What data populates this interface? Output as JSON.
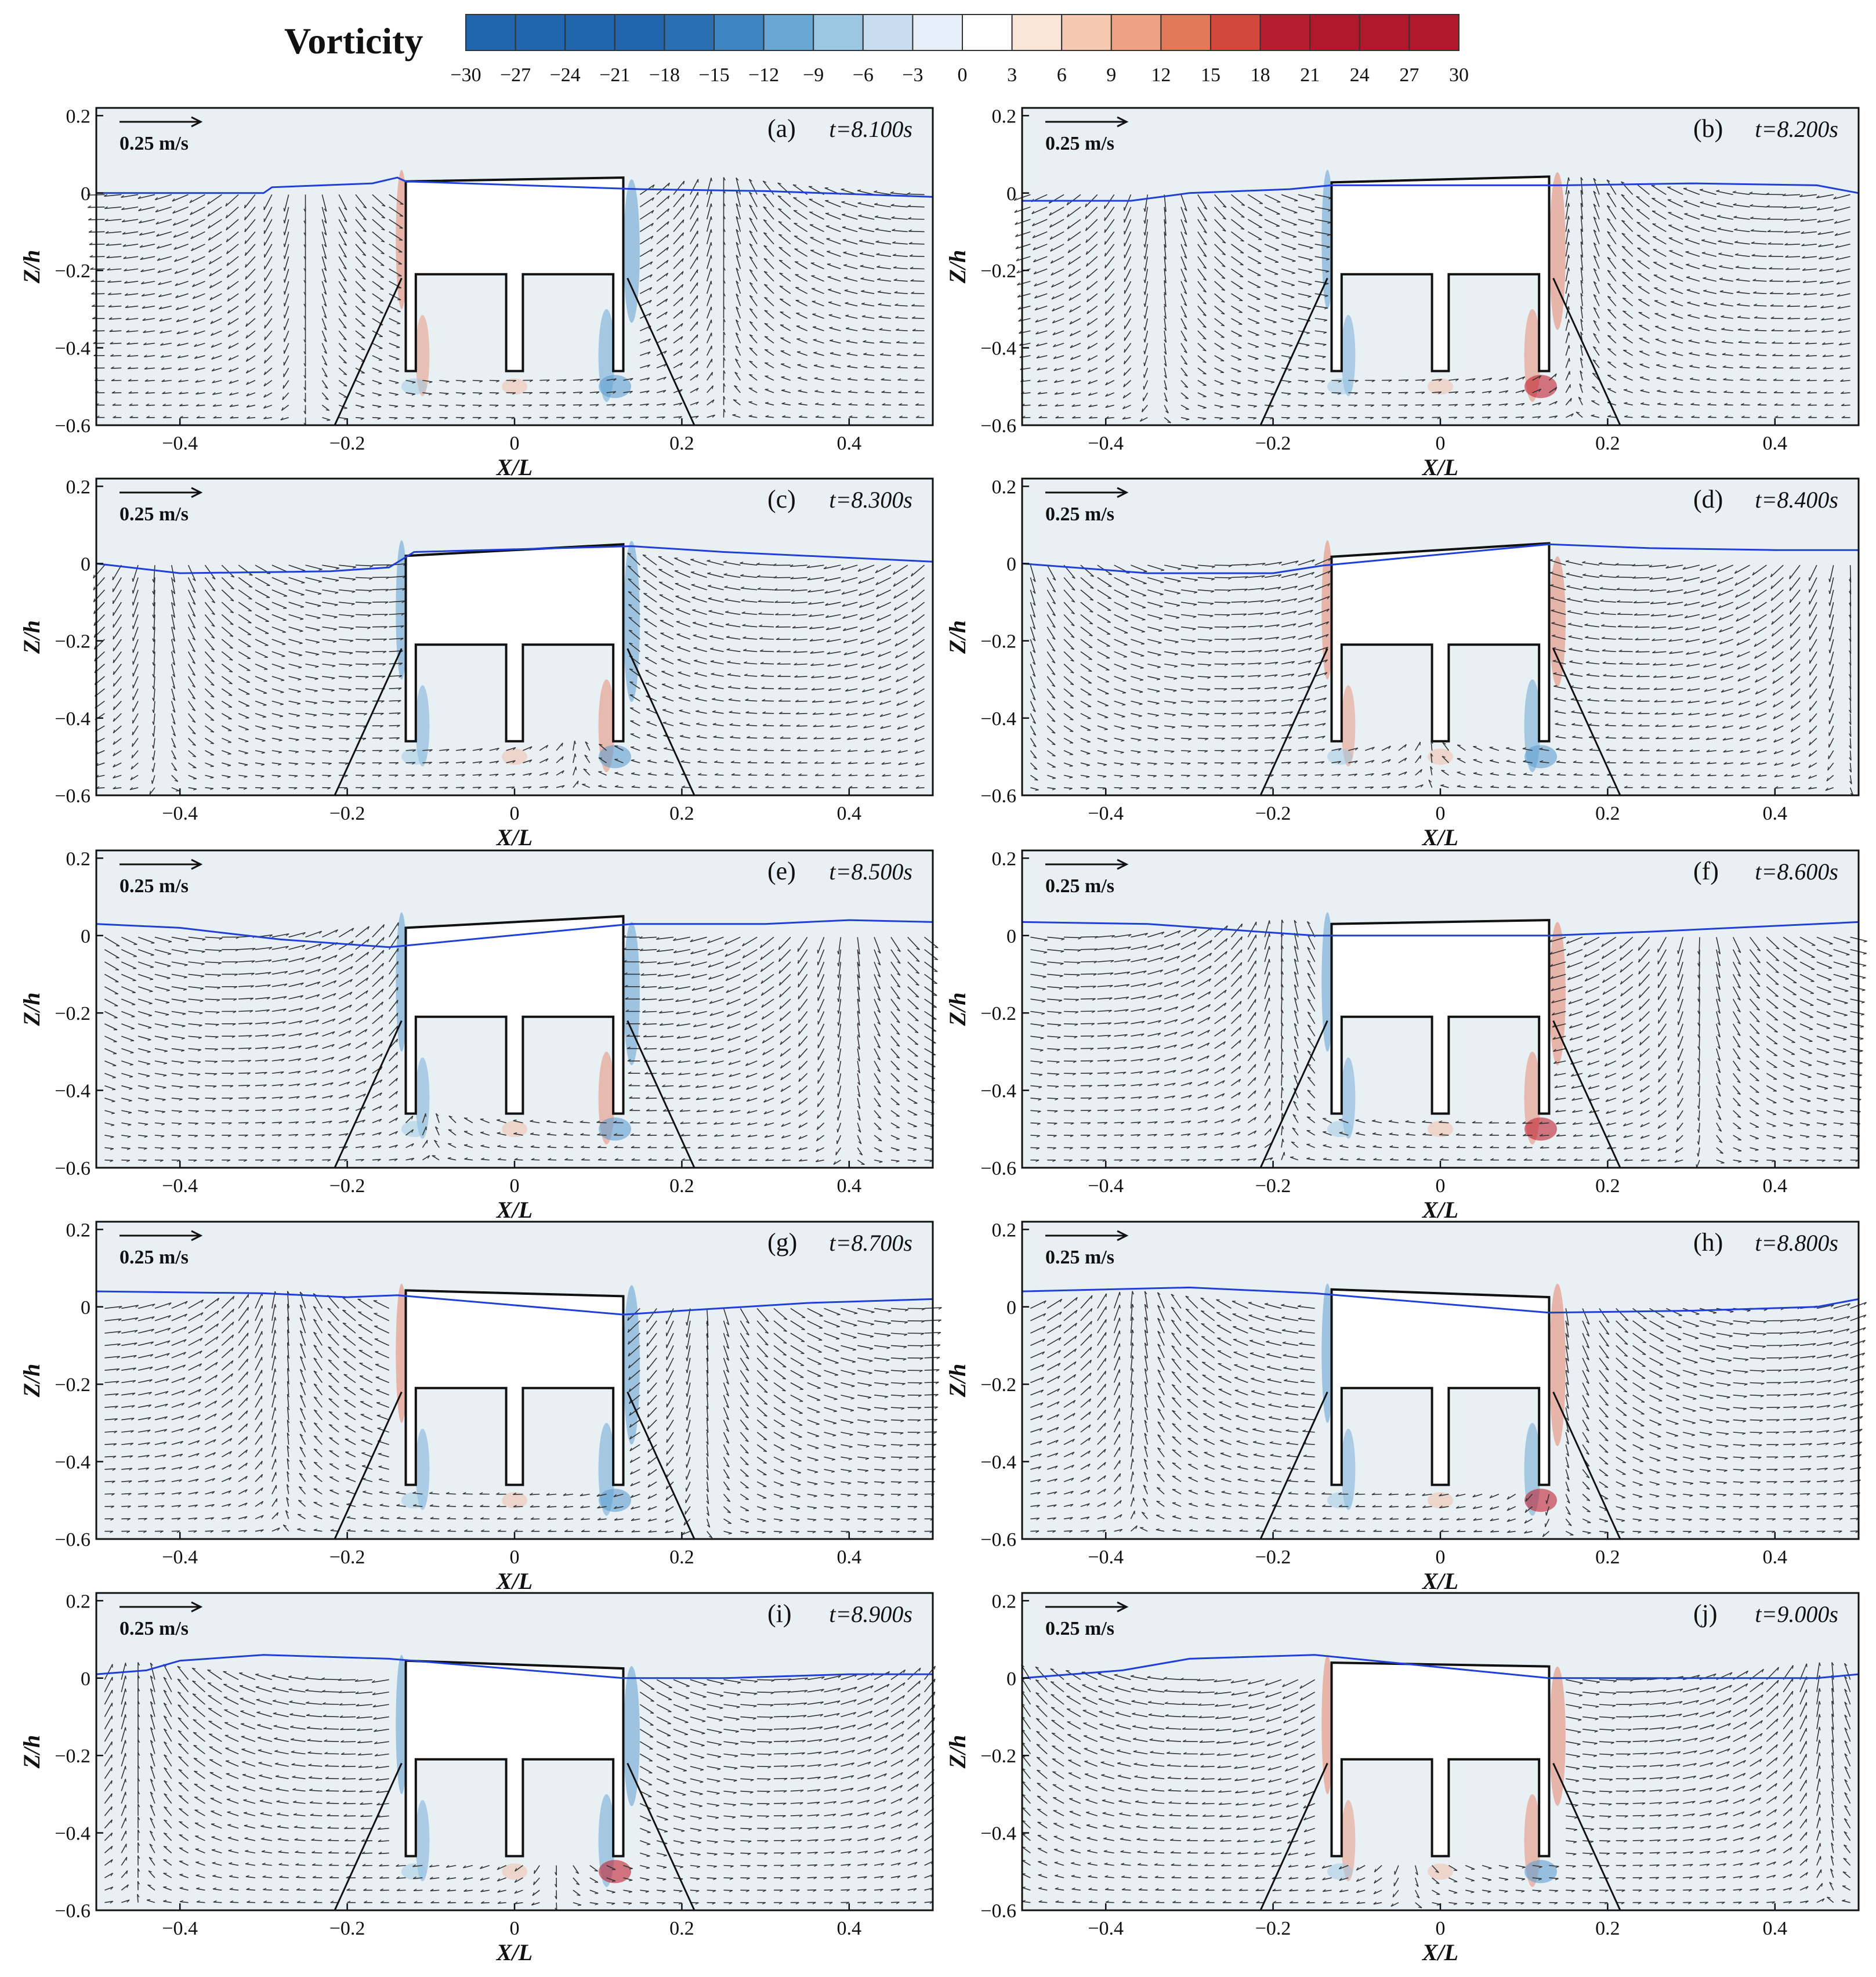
{
  "figure": {
    "colorbar": {
      "title": "Vorticity",
      "ticks": [
        "−30",
        "−27",
        "−24",
        "−21",
        "−18",
        "−15",
        "−12",
        "−9",
        "−6",
        "−3",
        "0",
        "3",
        "6",
        "9",
        "12",
        "15",
        "18",
        "21",
        "24",
        "27",
        "30"
      ],
      "range": [
        -30,
        30
      ],
      "colors": [
        "#2166ac",
        "#2166ac",
        "#2166ac",
        "#2166ac",
        "#2a6fb2",
        "#3f85c1",
        "#6aa7d3",
        "#9cc7e3",
        "#c8def0",
        "#e6eff7",
        "#ffffff",
        "#fbe4d8",
        "#f6c8b0",
        "#eea183",
        "#e27a5a",
        "#d2483a",
        "#b51e2f",
        "#b2182b",
        "#b2182b",
        "#b2182b"
      ]
    },
    "colors": {
      "water": "#e9f0f4",
      "air": "#e9f0f4",
      "free_surface": "#1f3fd6",
      "structure_fill": "#ffffff",
      "structure_edge": "#111111",
      "mooring": "#111111",
      "arrow": "#333333"
    }
  },
  "chart_data": [
    {
      "type": "vector-field",
      "panel": "(a)",
      "time": "t=8.100s",
      "xlabel": "X/L",
      "ylabel": "Z/h",
      "xlim": [
        -0.5,
        0.5
      ],
      "ylim": [
        -0.6,
        0.22
      ],
      "xticks": [
        "−0.4",
        "−0.2",
        "0",
        "0.2",
        "0.4"
      ],
      "yticks": [
        "0.2",
        "0",
        "−0.2",
        "−0.4",
        "−0.6"
      ],
      "ref_vector": "0.25 m/s",
      "body_tilt": 0.01,
      "surface": [
        [
          -0.5,
          0.0
        ],
        [
          -0.3,
          0.0
        ],
        [
          -0.29,
          0.015
        ],
        [
          -0.17,
          0.025
        ],
        [
          -0.14,
          0.04
        ],
        [
          -0.13,
          0.03
        ],
        [
          0.15,
          0.01
        ],
        [
          0.3,
          0.005
        ],
        [
          0.5,
          -0.01
        ]
      ]
    },
    {
      "type": "vector-field",
      "panel": "(b)",
      "time": "t=8.200s",
      "xlabel": "X/L",
      "ylabel": "Z/h",
      "xlim": [
        -0.5,
        0.5
      ],
      "ylim": [
        -0.6,
        0.22
      ],
      "xticks": [
        "−0.4",
        "−0.2",
        "0",
        "0.2",
        "0.4"
      ],
      "yticks": [
        "0.2",
        "0",
        "−0.2",
        "−0.4",
        "−0.6"
      ],
      "ref_vector": "0.25 m/s",
      "body_tilt": 0.015,
      "surface": [
        [
          -0.5,
          -0.02
        ],
        [
          -0.37,
          -0.02
        ],
        [
          -0.3,
          0.0
        ],
        [
          -0.18,
          0.01
        ],
        [
          -0.13,
          0.02
        ],
        [
          0.15,
          0.02
        ],
        [
          0.3,
          0.025
        ],
        [
          0.45,
          0.02
        ],
        [
          0.5,
          0.0
        ]
      ]
    },
    {
      "type": "vector-field",
      "panel": "(c)",
      "time": "t=8.300s",
      "xlabel": "X/L",
      "ylabel": "Z/h",
      "xlim": [
        -0.5,
        0.5
      ],
      "ylim": [
        -0.6,
        0.22
      ],
      "xticks": [
        "−0.4",
        "−0.2",
        "0",
        "0.2",
        "0.4"
      ],
      "yticks": [
        "0.2",
        "0",
        "−0.2",
        "−0.4",
        "−0.6"
      ],
      "ref_vector": "0.25 m/s",
      "body_tilt": 0.03,
      "surface": [
        [
          -0.5,
          0.0
        ],
        [
          -0.4,
          -0.025
        ],
        [
          -0.22,
          -0.02
        ],
        [
          -0.15,
          -0.01
        ],
        [
          -0.12,
          0.03
        ],
        [
          0.14,
          0.045
        ],
        [
          0.25,
          0.03
        ],
        [
          0.4,
          0.015
        ],
        [
          0.5,
          0.005
        ]
      ]
    },
    {
      "type": "vector-field",
      "panel": "(d)",
      "time": "t=8.400s",
      "xlabel": "X/L",
      "ylabel": "Z/h",
      "xlim": [
        -0.5,
        0.5
      ],
      "ylim": [
        -0.6,
        0.22
      ],
      "xticks": [
        "−0.4",
        "−0.2",
        "0",
        "0.2",
        "0.4"
      ],
      "yticks": [
        "0.2",
        "0",
        "−0.2",
        "−0.4",
        "−0.6"
      ],
      "ref_vector": "0.25 m/s",
      "body_tilt": 0.035,
      "surface": [
        [
          -0.5,
          0.0
        ],
        [
          -0.35,
          -0.025
        ],
        [
          -0.2,
          -0.025
        ],
        [
          -0.14,
          -0.005
        ],
        [
          0.13,
          0.05
        ],
        [
          0.25,
          0.04
        ],
        [
          0.4,
          0.035
        ],
        [
          0.5,
          0.035
        ]
      ]
    },
    {
      "type": "vector-field",
      "panel": "(e)",
      "time": "t=8.500s",
      "xlabel": "X/L",
      "ylabel": "Z/h",
      "xlim": [
        -0.5,
        0.5
      ],
      "ylim": [
        -0.6,
        0.22
      ],
      "xticks": [
        "−0.4",
        "−0.2",
        "0",
        "0.2",
        "0.4"
      ],
      "yticks": [
        "0.2",
        "0",
        "−0.2",
        "−0.4",
        "−0.6"
      ],
      "ref_vector": "0.25 m/s",
      "body_tilt": 0.03,
      "surface": [
        [
          -0.5,
          0.03
        ],
        [
          -0.4,
          0.02
        ],
        [
          -0.28,
          -0.01
        ],
        [
          -0.15,
          -0.03
        ],
        [
          0.14,
          0.03
        ],
        [
          0.3,
          0.03
        ],
        [
          0.4,
          0.04
        ],
        [
          0.5,
          0.035
        ]
      ]
    },
    {
      "type": "vector-field",
      "panel": "(f)",
      "time": "t=8.600s",
      "xlabel": "X/L",
      "ylabel": "Z/h",
      "xlim": [
        -0.5,
        0.5
      ],
      "ylim": [
        -0.6,
        0.22
      ],
      "xticks": [
        "−0.4",
        "−0.2",
        "0",
        "0.2",
        "0.4"
      ],
      "yticks": [
        "0.2",
        "0",
        "−0.2",
        "−0.4",
        "−0.6"
      ],
      "ref_vector": "0.25 m/s",
      "body_tilt": 0.01,
      "surface": [
        [
          -0.5,
          0.035
        ],
        [
          -0.35,
          0.03
        ],
        [
          -0.25,
          0.015
        ],
        [
          -0.15,
          0.0
        ],
        [
          0.13,
          0.0
        ],
        [
          0.25,
          0.01
        ],
        [
          0.35,
          0.02
        ],
        [
          0.5,
          0.035
        ]
      ]
    },
    {
      "type": "vector-field",
      "panel": "(g)",
      "time": "t=8.700s",
      "xlabel": "X/L",
      "ylabel": "Z/h",
      "xlim": [
        -0.5,
        0.5
      ],
      "ylim": [
        -0.6,
        0.22
      ],
      "xticks": [
        "−0.4",
        "−0.2",
        "0",
        "0.2",
        "0.4"
      ],
      "yticks": [
        "0.2",
        "0",
        "−0.2",
        "−0.4",
        "−0.6"
      ],
      "ref_vector": "0.25 m/s",
      "body_tilt": -0.015,
      "surface": [
        [
          -0.5,
          0.04
        ],
        [
          -0.3,
          0.035
        ],
        [
          -0.2,
          0.025
        ],
        [
          -0.14,
          0.03
        ],
        [
          0.13,
          -0.02
        ],
        [
          0.2,
          -0.01
        ],
        [
          0.35,
          0.01
        ],
        [
          0.5,
          0.02
        ]
      ]
    },
    {
      "type": "vector-field",
      "panel": "(h)",
      "time": "t=8.800s",
      "xlabel": "X/L",
      "ylabel": "Z/h",
      "xlim": [
        -0.5,
        0.5
      ],
      "ylim": [
        -0.6,
        0.22
      ],
      "xticks": [
        "−0.4",
        "−0.2",
        "0",
        "0.2",
        "0.4"
      ],
      "yticks": [
        "0.2",
        "0",
        "−0.2",
        "−0.4",
        "−0.6"
      ],
      "ref_vector": "0.25 m/s",
      "body_tilt": -0.02,
      "surface": [
        [
          -0.5,
          0.04
        ],
        [
          -0.3,
          0.05
        ],
        [
          -0.15,
          0.035
        ],
        [
          0.13,
          -0.015
        ],
        [
          0.3,
          -0.01
        ],
        [
          0.45,
          0.0
        ],
        [
          0.5,
          0.02
        ]
      ]
    },
    {
      "type": "vector-field",
      "panel": "(i)",
      "time": "t=8.900s",
      "xlabel": "X/L",
      "ylabel": "Z/h",
      "xlim": [
        -0.5,
        0.5
      ],
      "ylim": [
        -0.6,
        0.22
      ],
      "xticks": [
        "−0.4",
        "−0.2",
        "0",
        "0.2",
        "0.4"
      ],
      "yticks": [
        "0.2",
        "0",
        "−0.2",
        "−0.4",
        "−0.6"
      ],
      "ref_vector": "0.25 m/s",
      "body_tilt": -0.02,
      "surface": [
        [
          -0.5,
          0.01
        ],
        [
          -0.44,
          0.02
        ],
        [
          -0.4,
          0.045
        ],
        [
          -0.3,
          0.06
        ],
        [
          -0.15,
          0.05
        ],
        [
          0.13,
          0.0
        ],
        [
          0.25,
          0.0
        ],
        [
          0.4,
          0.01
        ],
        [
          0.5,
          0.01
        ]
      ]
    },
    {
      "type": "vector-field",
      "panel": "(j)",
      "time": "t=9.000s",
      "xlabel": "X/L",
      "ylabel": "Z/h",
      "xlim": [
        -0.5,
        0.5
      ],
      "ylim": [
        -0.6,
        0.22
      ],
      "xticks": [
        "−0.4",
        "−0.2",
        "0",
        "0.2",
        "0.4"
      ],
      "yticks": [
        "0.2",
        "0",
        "−0.2",
        "−0.4",
        "−0.6"
      ],
      "ref_vector": "0.25 m/s",
      "body_tilt": -0.01,
      "surface": [
        [
          -0.5,
          0.0
        ],
        [
          -0.38,
          0.02
        ],
        [
          -0.3,
          0.05
        ],
        [
          -0.15,
          0.06
        ],
        [
          0.13,
          0.0
        ],
        [
          0.3,
          0.0
        ],
        [
          0.45,
          0.0
        ],
        [
          0.5,
          0.01
        ]
      ]
    }
  ]
}
